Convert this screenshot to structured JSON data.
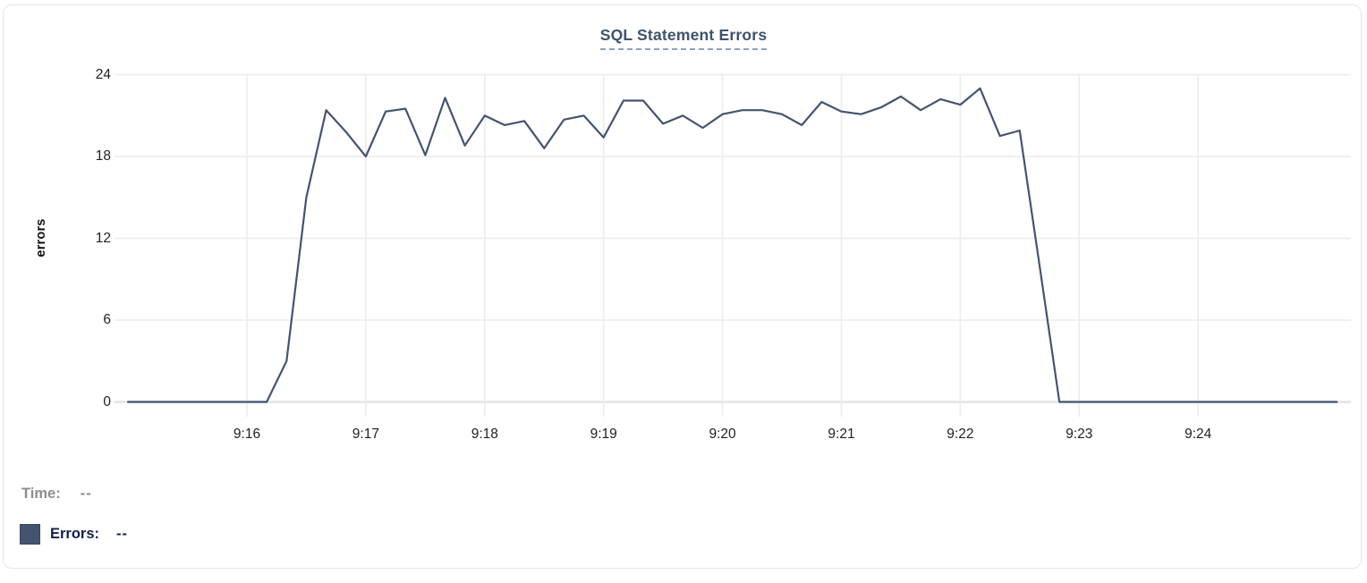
{
  "title": {
    "text": "SQL Statement Errors"
  },
  "y_axis": {
    "label": "errors",
    "ticks": [
      0,
      6,
      12,
      18,
      24
    ],
    "min": 0,
    "max": 24
  },
  "x_axis": {
    "ticks": [
      "9:16",
      "9:17",
      "9:18",
      "9:19",
      "9:20",
      "9:21",
      "9:22",
      "9:23",
      "9:24"
    ]
  },
  "tooltip_readout": {
    "time_label": "Time:",
    "time_value": "--",
    "errors_label": "Errors:",
    "errors_value": "--"
  },
  "colors": {
    "line": "#44546e",
    "swatch": "#44546e",
    "title_text": "#3e526b",
    "title_underline": "#90a0bd",
    "grid": "#ececef",
    "grid_zero": "#e3e3e6",
    "time_text": "#8c8c92",
    "errors_text": "#14204a"
  },
  "chart_data": {
    "type": "line",
    "title": "SQL Statement Errors",
    "xlabel": "",
    "ylabel": "errors",
    "ylim": [
      0,
      24
    ],
    "x_tick_labels": [
      "9:16",
      "9:17",
      "9:18",
      "9:19",
      "9:20",
      "9:21",
      "9:22",
      "9:23",
      "9:24"
    ],
    "grid": true,
    "legend_position": "bottom-left",
    "series_name": "Errors",
    "interval_seconds": 10,
    "points": [
      [
        "9:15:00",
        0
      ],
      [
        "9:15:10",
        0
      ],
      [
        "9:15:20",
        0
      ],
      [
        "9:15:30",
        0
      ],
      [
        "9:15:40",
        0
      ],
      [
        "9:15:50",
        0
      ],
      [
        "9:16:00",
        0
      ],
      [
        "9:16:10",
        0
      ],
      [
        "9:16:20",
        3
      ],
      [
        "9:16:30",
        15
      ],
      [
        "9:16:40",
        21.4
      ],
      [
        "9:16:50",
        19.8
      ],
      [
        "9:17:00",
        18
      ],
      [
        "9:17:10",
        21.3
      ],
      [
        "9:17:20",
        21.5
      ],
      [
        "9:17:30",
        18.1
      ],
      [
        "9:17:40",
        22.3
      ],
      [
        "9:17:50",
        18.8
      ],
      [
        "9:18:00",
        21
      ],
      [
        "9:18:10",
        20.3
      ],
      [
        "9:18:20",
        20.6
      ],
      [
        "9:18:30",
        18.6
      ],
      [
        "9:18:40",
        20.7
      ],
      [
        "9:18:50",
        21
      ],
      [
        "9:19:00",
        19.4
      ],
      [
        "9:19:10",
        22.1
      ],
      [
        "9:19:20",
        22.1
      ],
      [
        "9:19:30",
        20.4
      ],
      [
        "9:19:40",
        21
      ],
      [
        "9:19:50",
        20.1
      ],
      [
        "9:20:00",
        21.1
      ],
      [
        "9:20:10",
        21.4
      ],
      [
        "9:20:20",
        21.4
      ],
      [
        "9:20:30",
        21.1
      ],
      [
        "9:20:40",
        20.3
      ],
      [
        "9:20:50",
        22
      ],
      [
        "9:21:00",
        21.3
      ],
      [
        "9:21:10",
        21.1
      ],
      [
        "9:21:20",
        21.6
      ],
      [
        "9:21:30",
        22.4
      ],
      [
        "9:21:40",
        21.4
      ],
      [
        "9:21:50",
        22.2
      ],
      [
        "9:22:00",
        21.8
      ],
      [
        "9:22:10",
        23
      ],
      [
        "9:22:20",
        19.5
      ],
      [
        "9:22:30",
        19.9
      ],
      [
        "9:22:40",
        10
      ],
      [
        "9:22:50",
        0
      ],
      [
        "9:23:00",
        0
      ],
      [
        "9:23:10",
        0
      ],
      [
        "9:23:20",
        0
      ],
      [
        "9:23:30",
        0
      ],
      [
        "9:23:40",
        0
      ],
      [
        "9:23:50",
        0
      ],
      [
        "9:24:00",
        0
      ],
      [
        "9:24:10",
        0
      ],
      [
        "9:24:20",
        0
      ],
      [
        "9:24:30",
        0
      ],
      [
        "9:24:40",
        0
      ],
      [
        "9:24:50",
        0
      ],
      [
        "9:25:00",
        0
      ],
      [
        "9:25:10",
        0
      ]
    ]
  }
}
